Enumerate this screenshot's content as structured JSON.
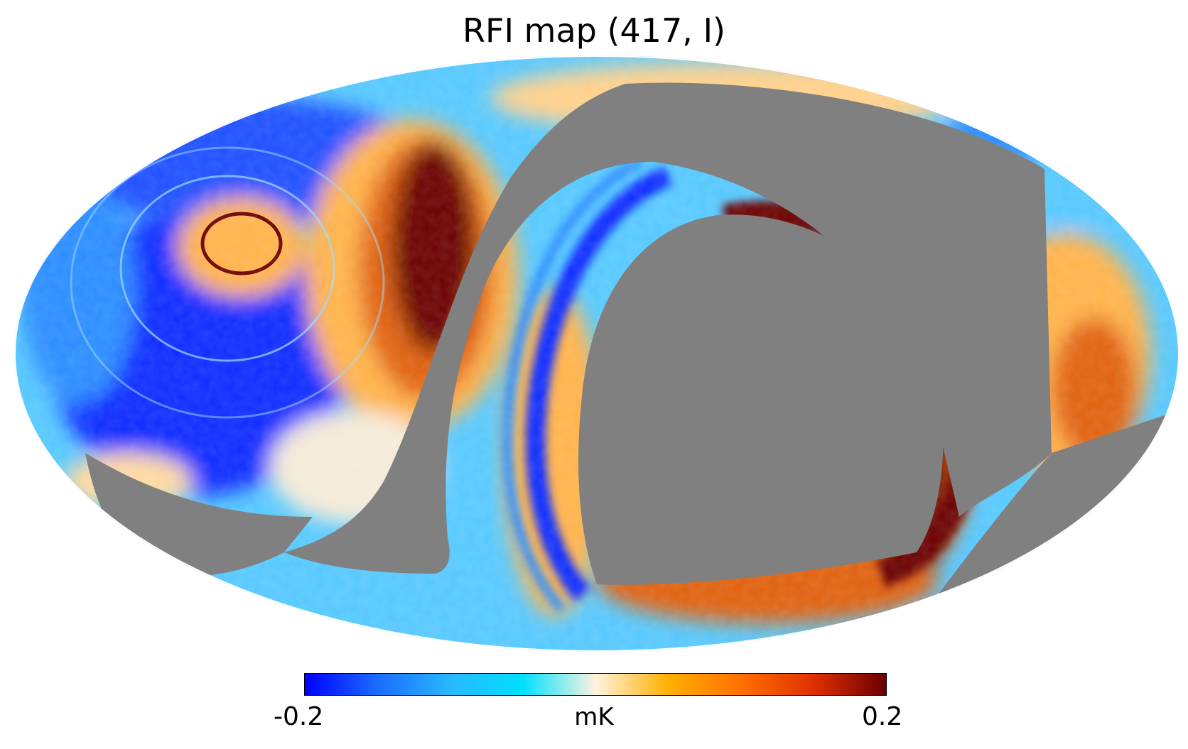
{
  "title": "RFI map (417, I)",
  "colorbar": {
    "min_label": "-0.2",
    "max_label": "0.2",
    "unit": "mK",
    "colormap": [
      "#0000ff",
      "#1b6cff",
      "#28b8ff",
      "#00e0ff",
      "#fff3e0",
      "#ffb000",
      "#ff7000",
      "#e03000",
      "#6a0000"
    ]
  },
  "map": {
    "projection": "mollweide",
    "masked_color": "#808080",
    "colors": {
      "deep_blue": "#0a2cff",
      "mid_blue": "#2a8cff",
      "light_blue": "#55c8ff",
      "pale": "#f4ead8",
      "orange": "#ffb24a",
      "dark_orange": "#e06010",
      "dark_red": "#6a0000"
    }
  }
}
